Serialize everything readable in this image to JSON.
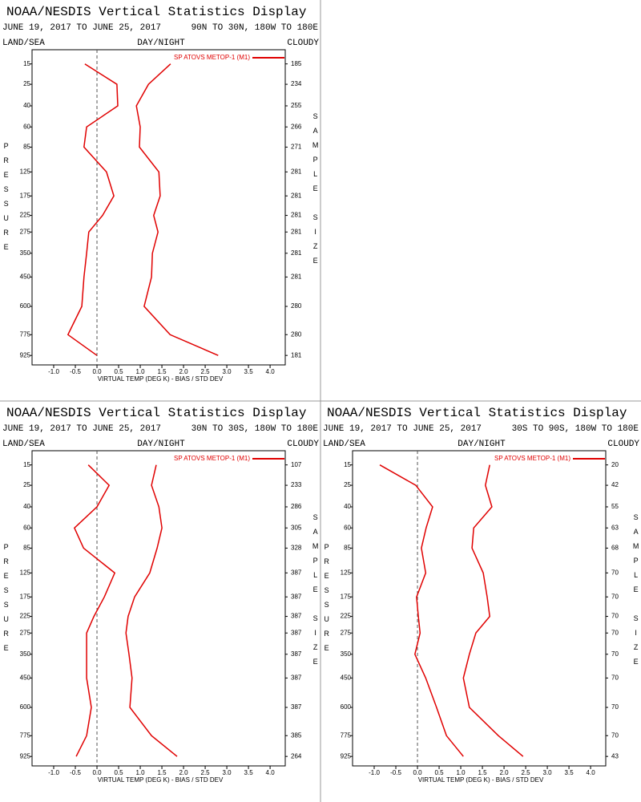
{
  "chart_data": [
    {
      "type": "line",
      "title": "NOAA/NESDIS Vertical Statistics Display",
      "date_range": "JUNE 19, 2017 TO JUNE 25, 2017",
      "region": "90N TO 30N, 180W TO 180E",
      "land_sea": "LAND/SEA",
      "day_night": "DAY/NIGHT",
      "cloud": "CLOUDY",
      "y_label": "PRESSURE",
      "y2_label": "SAMPLE SIZE",
      "x_label": "VIRTUAL TEMP (DEG K) - BIAS / STD DEV",
      "y": [
        15,
        25,
        40,
        60,
        85,
        125,
        175,
        225,
        275,
        350,
        450,
        600,
        775,
        925
      ],
      "sample_size": [
        185,
        234,
        255,
        266,
        271,
        281,
        281,
        281,
        281,
        281,
        281,
        280,
        280,
        181
      ],
      "series": [
        {
          "name": "SP ATOVS METOP-1 (M1)",
          "color": "#e00000",
          "values": [
            -0.28,
            0.46,
            0.48,
            -0.24,
            -0.3,
            0.22,
            0.39,
            0.13,
            -0.19,
            -0.24,
            -0.3,
            -0.35,
            -0.67,
            0.0
          ],
          "std_dev": [
            1.7,
            1.19,
            0.91,
            1.0,
            0.98,
            1.43,
            1.46,
            1.31,
            1.41,
            1.28,
            1.26,
            1.09,
            1.69,
            2.8
          ]
        }
      ],
      "xlim": [
        -1.5,
        4.35
      ],
      "ylim": [
        1000,
        10
      ],
      "y_scale": "power",
      "y_exponent": 0.286,
      "xticks": [
        {
          "value": -1,
          "label": "-1.0"
        },
        -0.5,
        {
          "value": 0,
          "label": "0.0"
        },
        0.5,
        {
          "value": 1,
          "label": "1.0"
        },
        1.5,
        {
          "value": 2,
          "label": "2.0"
        },
        2.5,
        {
          "value": 3,
          "label": "3.0"
        },
        3.5,
        {
          "value": 4,
          "label": "4.0"
        }
      ]
    },
    {
      "type": "line",
      "title": "NOAA/NESDIS Vertical Statistics Display",
      "date_range": "JUNE 19, 2017 TO JUNE 25, 2017",
      "region": "30N TO 30S, 180W TO 180E",
      "land_sea": "LAND/SEA",
      "day_night": "DAY/NIGHT",
      "cloud": "CLOUDY",
      "y_label": "PRESSURE",
      "y2_label": "SAMPLE SIZE",
      "x_label": "VIRTUAL TEMP (DEG K) - BIAS / STD DEV",
      "y": [
        15,
        25,
        40,
        60,
        85,
        125,
        175,
        225,
        275,
        350,
        450,
        600,
        775,
        925
      ],
      "sample_size": [
        107,
        233,
        286,
        305,
        328,
        387,
        387,
        387,
        387,
        387,
        387,
        387,
        385,
        264
      ],
      "series": [
        {
          "name": "SP ATOVS METOP-1 (M1)",
          "color": "#e00000",
          "values": [
            -0.2,
            0.28,
            0.0,
            -0.52,
            -0.31,
            0.41,
            0.17,
            -0.07,
            -0.24,
            -0.24,
            -0.24,
            -0.13,
            -0.24,
            -0.48
          ],
          "std_dev": [
            1.37,
            1.26,
            1.43,
            1.5,
            1.39,
            1.22,
            0.87,
            0.72,
            0.67,
            0.74,
            0.81,
            0.76,
            1.26,
            1.85
          ]
        }
      ],
      "xlim": [
        -1.5,
        4.35
      ],
      "ylim": [
        1000,
        10
      ],
      "y_scale": "power",
      "y_exponent": 0.286,
      "xticks": [
        {
          "value": -1,
          "label": "-1.0"
        },
        -0.5,
        {
          "value": 0,
          "label": "0.0"
        },
        0.5,
        {
          "value": 1,
          "label": "1.0"
        },
        1.5,
        {
          "value": 2,
          "label": "2.0"
        },
        2.5,
        {
          "value": 3,
          "label": "3.0"
        },
        3.5,
        {
          "value": 4,
          "label": "4.0"
        }
      ]
    },
    {
      "type": "line",
      "title": "NOAA/NESDIS Vertical Statistics Display",
      "date_range": "JUNE 19, 2017 TO JUNE 25, 2017",
      "region": "30S TO 90S, 180W TO 180E",
      "land_sea": "LAND/SEA",
      "day_night": "DAY/NIGHT",
      "cloud": "CLOUDY",
      "y_label": "PRESSURE",
      "y2_label": "SAMPLE SIZE",
      "x_label": "VIRTUAL TEMP (DEG K) - BIAS / STD DEV",
      "y": [
        15,
        25,
        40,
        60,
        85,
        125,
        175,
        225,
        275,
        350,
        450,
        600,
        775,
        925
      ],
      "sample_size": [
        20,
        42,
        55,
        63,
        68,
        70,
        70,
        70,
        70,
        70,
        70,
        70,
        70,
        43
      ],
      "series": [
        {
          "name": "SP ATOVS METOP-1 (M1)",
          "color": "#e00000",
          "values": [
            -0.87,
            -0.04,
            0.35,
            0.2,
            0.09,
            0.19,
            -0.02,
            0.02,
            0.06,
            -0.06,
            0.19,
            0.44,
            0.67,
            1.06
          ],
          "std_dev": [
            1.67,
            1.57,
            1.72,
            1.3,
            1.26,
            1.52,
            1.61,
            1.67,
            1.35,
            1.2,
            1.06,
            1.2,
            1.87,
            2.44
          ]
        }
      ],
      "xlim": [
        -1.5,
        4.35
      ],
      "ylim": [
        1000,
        10
      ],
      "y_scale": "power",
      "y_exponent": 0.286,
      "xticks": [
        {
          "value": -1,
          "label": "-1.0"
        },
        -0.5,
        {
          "value": 0,
          "label": "0.0"
        },
        0.5,
        {
          "value": 1,
          "label": "1.0"
        },
        1.5,
        {
          "value": 2,
          "label": "2.0"
        },
        2.5,
        {
          "value": 3,
          "label": "3.0"
        },
        3.5,
        {
          "value": 4,
          "label": "4.0"
        }
      ]
    }
  ]
}
